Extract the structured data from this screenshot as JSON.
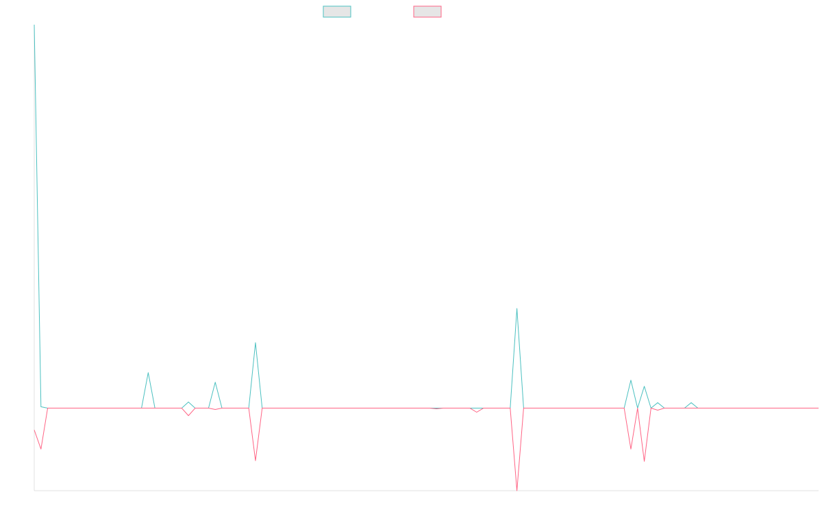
{
  "chart_data": {
    "type": "line",
    "title": "",
    "xlabel": "",
    "ylabel": "",
    "grid": false,
    "legend": "top-center",
    "n_points": 118,
    "ylim": [
      -12.1,
      56.2
    ],
    "colors": {
      "series_1": "#4bc0c0",
      "series_2": "#ff6384",
      "legend_fill": "#e6e6e6",
      "axis": "#e0e0e0"
    },
    "series": [
      {
        "legend_label": "",
        "color": "#4bc0c0",
        "points": [
          [
            0,
            56.2
          ],
          [
            1,
            0.2
          ],
          [
            16,
            0
          ],
          [
            17,
            5.2
          ],
          [
            18,
            0
          ],
          [
            22,
            0
          ],
          [
            23,
            0.9
          ],
          [
            24,
            0
          ],
          [
            26,
            0
          ],
          [
            27,
            3.8
          ],
          [
            28,
            0
          ],
          [
            32,
            0
          ],
          [
            33,
            9.6
          ],
          [
            34,
            0
          ],
          [
            71,
            0
          ],
          [
            72,
            14.6
          ],
          [
            73,
            0
          ],
          [
            88,
            0
          ],
          [
            89,
            4.1
          ],
          [
            90,
            0
          ],
          [
            91,
            3.2
          ],
          [
            92,
            0
          ],
          [
            93,
            0.8
          ],
          [
            94,
            0
          ],
          [
            97,
            0
          ],
          [
            98,
            0.8
          ],
          [
            99,
            0
          ],
          [
            117,
            0
          ]
        ]
      },
      {
        "legend_label": "",
        "color": "#ff6384",
        "points": [
          [
            0,
            -3.2
          ],
          [
            1,
            -6
          ],
          [
            2,
            0
          ],
          [
            22,
            0
          ],
          [
            23,
            -1.1
          ],
          [
            24,
            0
          ],
          [
            26,
            0
          ],
          [
            27,
            -0.2
          ],
          [
            28,
            0
          ],
          [
            32,
            0
          ],
          [
            33,
            -7.7
          ],
          [
            34,
            0
          ],
          [
            59,
            0
          ],
          [
            60,
            -0.1
          ],
          [
            61,
            0
          ],
          [
            65,
            0
          ],
          [
            66,
            -0.6
          ],
          [
            67,
            0
          ],
          [
            71,
            0
          ],
          [
            72,
            -12.1
          ],
          [
            73,
            0
          ],
          [
            88,
            0
          ],
          [
            89,
            -6
          ],
          [
            90,
            0
          ],
          [
            91,
            -7.8
          ],
          [
            92,
            0
          ],
          [
            93,
            -0.3
          ],
          [
            94,
            0
          ],
          [
            117,
            0
          ]
        ]
      }
    ]
  }
}
